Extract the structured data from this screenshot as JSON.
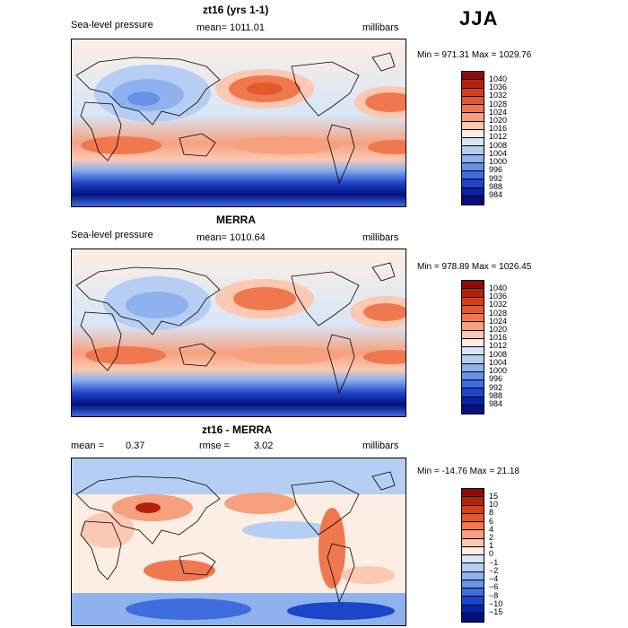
{
  "season": "JJA",
  "panels": [
    {
      "title": "zt16 (yrs 1-1)",
      "variable": "Sea-level pressure",
      "mean": "mean= 1011.01",
      "units": "millibars",
      "minmax": "Min = 971.31 Max = 1029.76",
      "colorbar": {
        "labels": [
          "1040",
          "1036",
          "1032",
          "1028",
          "1024",
          "1020",
          "1016",
          "1012",
          "1008",
          "1004",
          "1000",
          "996",
          "992",
          "988",
          "984"
        ],
        "colors": [
          "#8c0a0a",
          "#b5210f",
          "#d2401a",
          "#e4582e",
          "#f0784f",
          "#f6a07e",
          "#fbc8b2",
          "#fdeee4",
          "#d8e6f7",
          "#b6cef3",
          "#8fb2ee",
          "#6890e6",
          "#3e6ddd",
          "#1c45c9",
          "#0a22a8",
          "#03107d"
        ]
      }
    },
    {
      "title": "MERRA",
      "variable": "Sea-level pressure",
      "mean": "mean= 1010.64",
      "units": "millibars",
      "minmax": "Min = 978.89 Max = 1026.45",
      "colorbar": {
        "labels": [
          "1040",
          "1036",
          "1032",
          "1028",
          "1024",
          "1020",
          "1016",
          "1012",
          "1008",
          "1004",
          "1000",
          "996",
          "992",
          "988",
          "984"
        ],
        "colors": [
          "#8c0a0a",
          "#b5210f",
          "#d2401a",
          "#e4582e",
          "#f0784f",
          "#f6a07e",
          "#fbc8b2",
          "#fdeee4",
          "#d8e6f7",
          "#b6cef3",
          "#8fb2ee",
          "#6890e6",
          "#3e6ddd",
          "#1c45c9",
          "#0a22a8",
          "#03107d"
        ]
      }
    },
    {
      "title": "zt16 - MERRA",
      "mean_label": "mean =",
      "mean_value": "0.37",
      "rmse_label": "rmse =",
      "rmse_value": "3.02",
      "units": "millibars",
      "minmax": "Min = -14.76 Max =  21.18",
      "colorbar": {
        "labels": [
          "15",
          "10",
          "8",
          "6",
          "4",
          "2",
          "1",
          "0",
          "−1",
          "−2",
          "−4",
          "−6",
          "−8",
          "−10",
          "−15"
        ],
        "colors": [
          "#8c0a0a",
          "#b5210f",
          "#d2401a",
          "#e4582e",
          "#f0784f",
          "#f6a07e",
          "#fbc8b2",
          "#fdeee4",
          "#d8e6f7",
          "#b6cef3",
          "#8fb2ee",
          "#6890e6",
          "#3e6ddd",
          "#1c45c9",
          "#0a22a8",
          "#03107d"
        ]
      }
    }
  ]
}
